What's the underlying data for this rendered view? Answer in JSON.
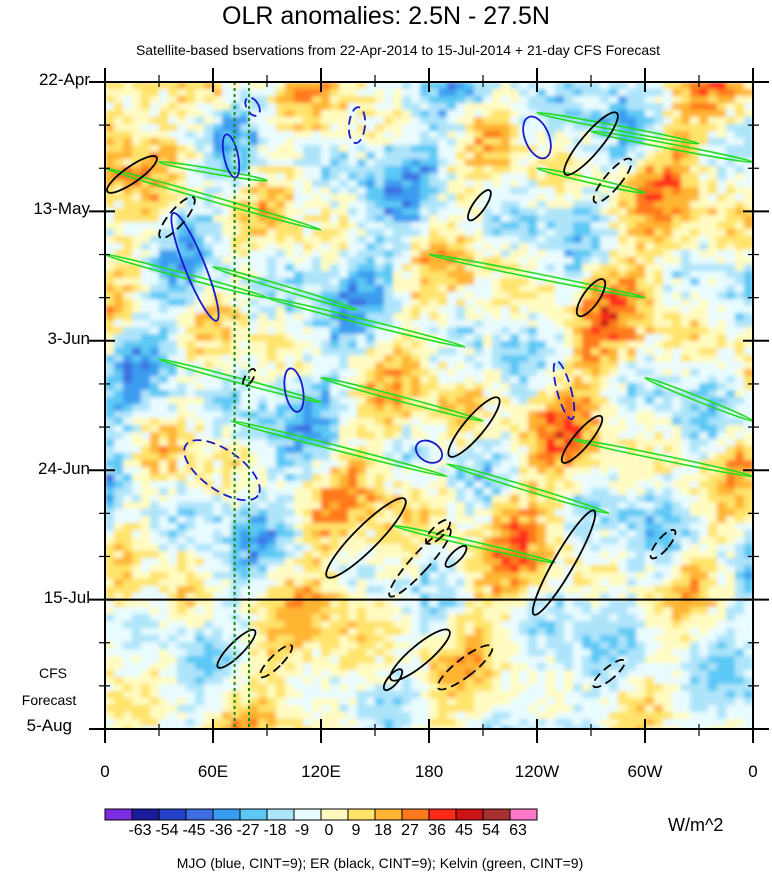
{
  "header": {
    "title": "OLR anomalies: 2.5N - 27.5N",
    "subtitle": "Satellite-based bservations from 22-Apr-2014 to 15-Jul-2014 + 21-day CFS Forecast"
  },
  "forecast_label": {
    "line1": "CFS",
    "line2": "Forecast"
  },
  "footer": {
    "units": "W/m^2",
    "legend": "MJO (blue, CINT=9); ER (black, CINT=9); Kelvin (green, CINT=9)"
  },
  "colors": {
    "mjo": "#1a1acc",
    "er": "#000000",
    "kelvin": "#22dd22",
    "dashed_guides": "#1a8a1a"
  },
  "chart_data": {
    "type": "heatmap",
    "title": "OLR anomalies: 2.5N - 27.5N",
    "xlabel": "",
    "ylabel": "",
    "x_ticks": [
      "0",
      "60E",
      "120E",
      "180",
      "120W",
      "60W",
      "0"
    ],
    "y_ticks": [
      "22-Apr",
      "13-May",
      "3-Jun",
      "24-Jun",
      "15-Jul",
      "5-Aug"
    ],
    "x_range_deg_east": [
      0,
      360
    ],
    "y_range_days_from_22Apr": [
      0,
      105
    ],
    "observation_end": "15-Jul",
    "forecast_length_days": 21,
    "guide_longitudes_deg_east": [
      72,
      80
    ],
    "colorbar": {
      "units": "W/m^2",
      "labels": [
        "-63",
        "-54",
        "-45",
        "-36",
        "-27",
        "-18",
        "-9",
        "0",
        "9",
        "18",
        "27",
        "36",
        "45",
        "54",
        "63"
      ],
      "colors": [
        "#7a2ee0",
        "#1a1a9a",
        "#2540c8",
        "#3c6ee0",
        "#3a9cf0",
        "#5cc8f5",
        "#aee4fa",
        "#e8fbff",
        "#fffbc0",
        "#ffe36a",
        "#ffb432",
        "#ff7a1e",
        "#ff2a1a",
        "#cc1414",
        "#a83030",
        "#ff78c8"
      ]
    },
    "overlays": [
      "MJO (blue, CINT=9)",
      "ER (black, CINT=9)",
      "Kelvin (green, CINT=9)"
    ]
  }
}
